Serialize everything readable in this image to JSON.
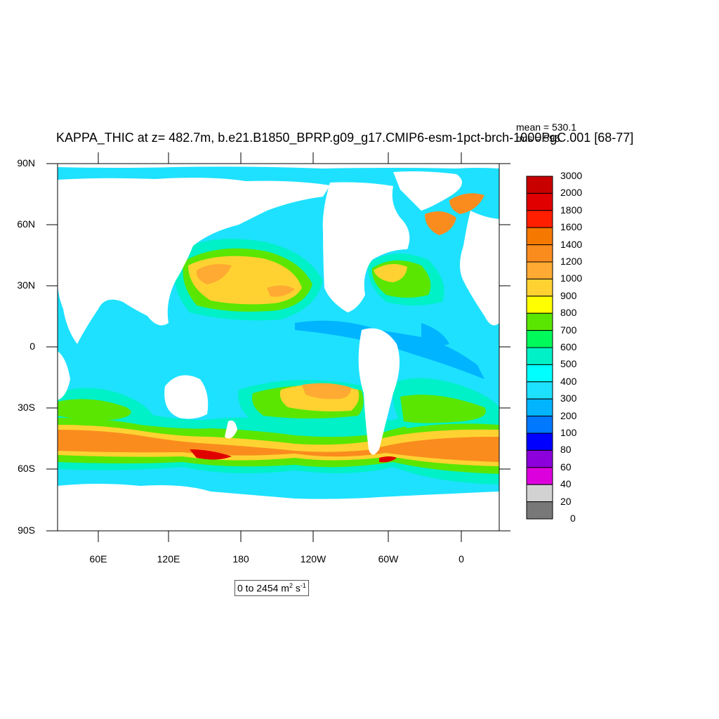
{
  "title": "KAPPA_THIC at z= 482.7m, b.e21.B1850_BPRP.g09_g17.CMIP6-esm-1pct-brch-1000PgC.001 [68-77]",
  "stats": {
    "mean": "mean = 530.1",
    "rms": "rms = 596"
  },
  "axes": {
    "lat_ticks": [
      "90N",
      "60N",
      "30N",
      "0",
      "30S",
      "60S",
      "90S"
    ],
    "lon_ticks": [
      "60E",
      "120E",
      "180",
      "120W",
      "60W",
      "0"
    ]
  },
  "colorbar": {
    "labels": [
      "3000",
      "2000",
      "1800",
      "1600",
      "1400",
      "1200",
      "1000",
      "900",
      "800",
      "700",
      "600",
      "500",
      "400",
      "300",
      "200",
      "100",
      "80",
      "60",
      "40",
      "20",
      "0"
    ],
    "colors": [
      "#c80000",
      "#e00000",
      "#ff1e00",
      "#f57800",
      "#fa8c1e",
      "#ffaa32",
      "#ffd232",
      "#ffff00",
      "#5ae600",
      "#00fa5a",
      "#00f0c8",
      "#00ffff",
      "#1ee1ff",
      "#00b4ff",
      "#0078ff",
      "#0000ff",
      "#8c00dc",
      "#dc00dc",
      "#d2d2d2",
      "#787878"
    ]
  },
  "range": {
    "prefix": "0 to 2454 m",
    "exp1": "2",
    "mid": " s",
    "exp2": "-1"
  },
  "colors": {
    "ocean_base": "#1ee1ff",
    "land": "#ffffff"
  }
}
